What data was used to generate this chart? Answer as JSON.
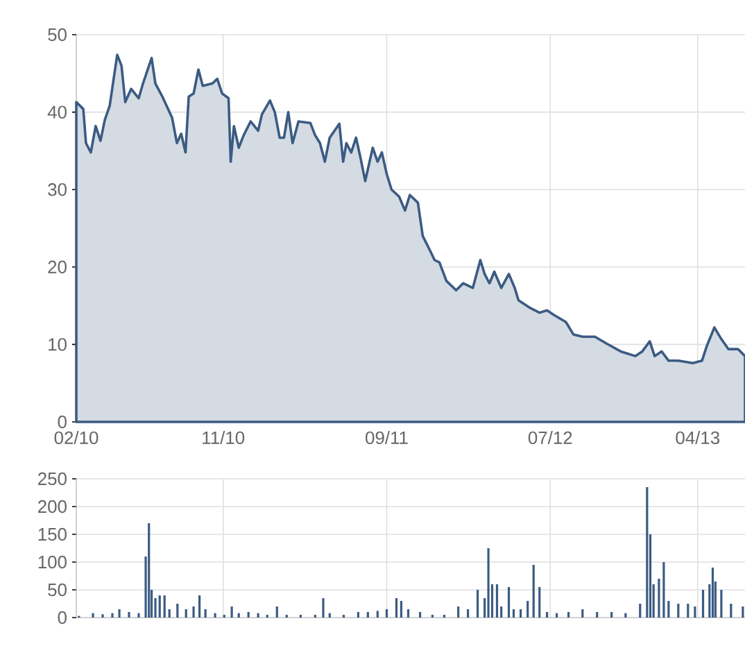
{
  "chart_data": [
    {
      "type": "area",
      "xlim": [
        "2010-02-01",
        "2013-06-28"
      ],
      "ylim": [
        0,
        50
      ],
      "yticks": [
        0,
        10,
        20,
        30,
        40,
        50
      ],
      "xticks": [
        {
          "value": "2010-02-01",
          "label": "02/10"
        },
        {
          "value": "2010-11-01",
          "label": "11/10"
        },
        {
          "value": "2011-09-01",
          "label": "09/11"
        },
        {
          "value": "2012-07-01",
          "label": "07/12"
        },
        {
          "value": "2013-04-01",
          "label": "04/13"
        }
      ],
      "grid": true,
      "x": [
        "2010-02-01",
        "2010-02-14",
        "2010-02-19",
        "2010-02-28",
        "2010-03-09",
        "2010-03-18",
        "2010-03-26",
        "2010-04-04",
        "2010-04-18",
        "2010-04-26",
        "2010-05-03",
        "2010-05-14",
        "2010-05-28",
        "2010-06-05",
        "2010-06-21",
        "2010-06-28",
        "2010-07-11",
        "2010-07-29",
        "2010-08-07",
        "2010-08-15",
        "2010-08-23",
        "2010-08-29",
        "2010-09-07",
        "2010-09-16",
        "2010-09-24",
        "2010-10-12",
        "2010-10-21",
        "2010-10-30",
        "2010-11-11",
        "2010-11-15",
        "2010-11-21",
        "2010-11-30",
        "2010-12-09",
        "2010-12-22",
        "2011-01-05",
        "2011-01-12",
        "2011-01-27",
        "2011-02-05",
        "2011-02-14",
        "2011-02-22",
        "2011-03-02",
        "2011-03-10",
        "2011-03-21",
        "2011-04-12",
        "2011-04-21",
        "2011-04-30",
        "2011-05-09",
        "2011-05-18",
        "2011-06-05",
        "2011-06-12",
        "2011-06-18",
        "2011-06-27",
        "2011-07-06",
        "2011-07-14",
        "2011-07-23",
        "2011-08-06",
        "2011-08-15",
        "2011-08-23",
        "2011-09-01",
        "2011-09-10",
        "2011-09-24",
        "2011-10-05",
        "2011-10-14",
        "2011-10-29",
        "2011-11-07",
        "2011-11-20",
        "2011-11-29",
        "2011-12-08",
        "2011-12-21",
        "2012-01-08",
        "2012-01-21",
        "2012-02-08",
        "2012-02-22",
        "2012-03-01",
        "2012-03-10",
        "2012-03-19",
        "2012-04-01",
        "2012-04-15",
        "2012-04-26",
        "2012-05-03",
        "2012-05-25",
        "2012-06-11",
        "2012-06-25",
        "2012-07-08",
        "2012-07-30",
        "2012-08-13",
        "2012-08-30",
        "2012-09-22",
        "2012-10-14",
        "2012-11-09",
        "2012-12-06",
        "2012-12-19",
        "2013-01-02",
        "2013-01-11",
        "2013-01-24",
        "2013-02-06",
        "2013-02-24",
        "2013-03-23",
        "2013-04-09",
        "2013-04-18",
        "2013-05-02",
        "2013-05-15",
        "2013-05-28",
        "2013-06-15",
        "2013-06-28"
      ],
      "series": [
        {
          "color": "#3b5b82",
          "values": [
            41.3,
            40.4,
            36,
            34.8,
            38.2,
            36.3,
            39,
            40.8,
            47.4,
            46,
            41.3,
            43,
            41.8,
            43.7,
            47,
            43.7,
            42,
            39.3,
            36,
            37.2,
            34.8,
            42,
            42.4,
            45.5,
            43.4,
            43.7,
            44.3,
            42.4,
            41.8,
            33.6,
            38.2,
            35.4,
            37,
            38.8,
            37.6,
            39.7,
            41.5,
            40,
            36.7,
            36.7,
            40,
            36,
            38.8,
            38.6,
            37,
            36,
            33.6,
            36.7,
            38.5,
            33.6,
            36,
            34.8,
            36.7,
            34.2,
            31.1,
            35.4,
            33.6,
            34.8,
            32,
            30,
            29.1,
            27.3,
            29.3,
            28.3,
            24,
            22.2,
            20.9,
            20.6,
            18.2,
            17,
            17.9,
            17.3,
            20.9,
            19.1,
            17.9,
            19.4,
            17.3,
            19.1,
            17.3,
            15.7,
            14.7,
            14.1,
            14.4,
            13.8,
            12.9,
            11.3,
            11,
            11,
            10.1,
            9.1,
            8.5,
            9.1,
            10.4,
            8.5,
            9.1,
            7.9,
            7.9,
            7.6,
            7.9,
            9.8,
            12.2,
            10.7,
            9.4,
            9.4,
            8.5
          ]
        }
      ]
    },
    {
      "type": "bar",
      "xlim": [
        "2010-02-01",
        "2013-06-28"
      ],
      "ylim": [
        0,
        250
      ],
      "yticks": [
        0,
        50,
        100,
        150,
        200,
        250
      ],
      "xticks": [
        {
          "value": "2010-02-01",
          "label": null
        },
        {
          "value": "2010-11-01",
          "label": null
        },
        {
          "value": "2011-09-01",
          "label": null
        },
        {
          "value": "2012-07-01",
          "label": null
        },
        {
          "value": "2013-04-01",
          "label": null
        }
      ],
      "grid": true,
      "tick_labels": "y",
      "x": [
        "2010-02-06",
        "2010-03-04",
        "2010-03-22",
        "2010-04-09",
        "2010-04-22",
        "2010-05-10",
        "2010-05-28",
        "2010-06-10",
        "2010-06-16",
        "2010-06-21",
        "2010-06-28",
        "2010-07-06",
        "2010-07-15",
        "2010-07-24",
        "2010-08-08",
        "2010-08-24",
        "2010-09-07",
        "2010-09-18",
        "2010-09-29",
        "2010-10-17",
        "2010-11-03",
        "2010-11-17",
        "2010-11-30",
        "2010-12-18",
        "2011-01-05",
        "2011-01-22",
        "2011-02-09",
        "2011-02-27",
        "2011-03-25",
        "2011-04-21",
        "2011-05-06",
        "2011-05-18",
        "2011-06-13",
        "2011-07-10",
        "2011-07-28",
        "2011-08-15",
        "2011-09-01",
        "2011-09-19",
        "2011-09-28",
        "2011-10-11",
        "2011-11-02",
        "2011-11-25",
        "2011-12-17",
        "2012-01-12",
        "2012-01-30",
        "2012-02-17",
        "2012-03-01",
        "2012-03-08",
        "2012-03-15",
        "2012-03-24",
        "2012-04-01",
        "2012-04-15",
        "2012-04-24",
        "2012-05-07",
        "2012-05-20",
        "2012-05-31",
        "2012-06-11",
        "2012-06-25",
        "2012-07-13",
        "2012-08-04",
        "2012-08-30",
        "2012-09-26",
        "2012-10-23",
        "2012-11-18",
        "2012-12-15",
        "2012-12-28",
        "2013-01-03",
        "2013-01-09",
        "2013-01-19",
        "2013-01-28",
        "2013-02-06",
        "2013-02-24",
        "2013-03-14",
        "2013-03-27",
        "2013-04-11",
        "2013-04-23",
        "2013-04-29",
        "2013-05-04",
        "2013-05-15",
        "2013-06-02",
        "2013-06-24"
      ],
      "series": [
        {
          "color": "#3b5b82",
          "values": [
            3,
            8,
            6,
            8,
            15,
            10,
            8,
            110,
            170,
            50,
            35,
            40,
            40,
            15,
            25,
            15,
            20,
            40,
            15,
            8,
            5,
            20,
            8,
            10,
            8,
            5,
            20,
            5,
            5,
            5,
            35,
            8,
            5,
            10,
            10,
            12,
            15,
            35,
            30,
            15,
            10,
            5,
            5,
            20,
            15,
            50,
            35,
            125,
            60,
            60,
            20,
            55,
            15,
            15,
            30,
            95,
            55,
            10,
            8,
            10,
            15,
            10,
            10,
            8,
            25,
            235,
            150,
            60,
            70,
            100,
            30,
            25,
            25,
            20,
            50,
            60,
            90,
            65,
            50,
            25,
            20
          ]
        }
      ]
    }
  ]
}
